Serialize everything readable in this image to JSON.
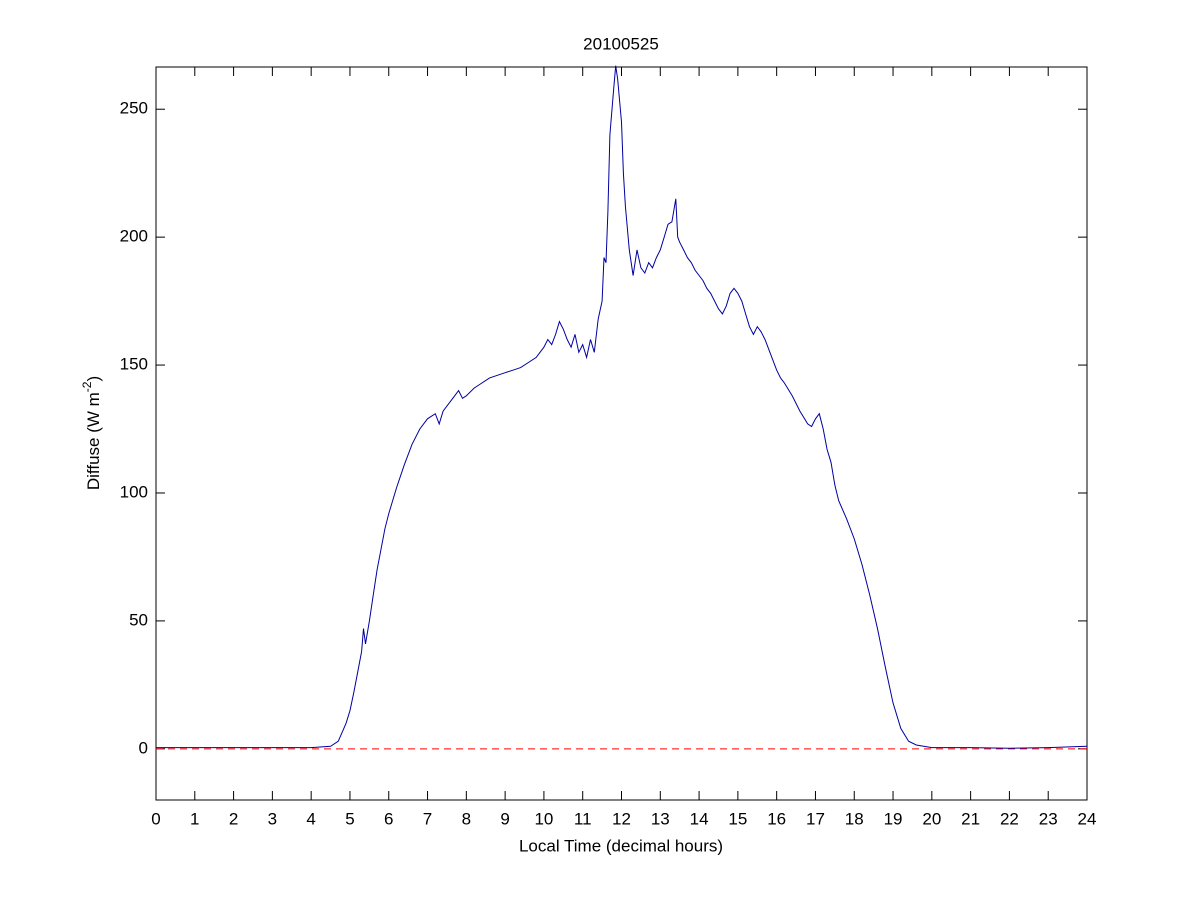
{
  "chart_data": {
    "type": "line",
    "title": "20100525",
    "xlabel": "Local Time (decimal hours)",
    "ylabel": [
      "Diffuse (W m",
      "-2",
      ")"
    ],
    "x": [
      0,
      4,
      4.5,
      4.7,
      4.9,
      5.0,
      5.1,
      5.2,
      5.3,
      5.35,
      5.4,
      5.5,
      5.6,
      5.7,
      5.8,
      5.9,
      6.0,
      6.2,
      6.4,
      6.6,
      6.8,
      7.0,
      7.2,
      7.3,
      7.4,
      7.6,
      7.8,
      7.9,
      8.0,
      8.2,
      8.4,
      8.6,
      8.8,
      9.0,
      9.2,
      9.4,
      9.6,
      9.8,
      10.0,
      10.1,
      10.2,
      10.3,
      10.4,
      10.5,
      10.6,
      10.7,
      10.8,
      10.9,
      11.0,
      11.1,
      11.2,
      11.3,
      11.4,
      11.5,
      11.55,
      11.6,
      11.65,
      11.7,
      11.8,
      11.85,
      11.9,
      12.0,
      12.05,
      12.1,
      12.2,
      12.3,
      12.4,
      12.5,
      12.6,
      12.7,
      12.8,
      12.9,
      13.0,
      13.1,
      13.2,
      13.3,
      13.4,
      13.45,
      13.5,
      13.6,
      13.7,
      13.8,
      13.9,
      14.0,
      14.1,
      14.2,
      14.3,
      14.4,
      14.5,
      14.6,
      14.7,
      14.8,
      14.9,
      15.0,
      15.1,
      15.2,
      15.3,
      15.4,
      15.5,
      15.6,
      15.7,
      15.8,
      15.9,
      16.0,
      16.1,
      16.2,
      16.4,
      16.6,
      16.8,
      16.9,
      17.0,
      17.1,
      17.2,
      17.3,
      17.4,
      17.5,
      17.6,
      17.8,
      18.0,
      18.2,
      18.4,
      18.6,
      18.8,
      19.0,
      19.2,
      19.4,
      19.6,
      20,
      21,
      22,
      23,
      24
    ],
    "series": [
      {
        "color": "#0000a0",
        "values": [
          0.5,
          0.5,
          1,
          3,
          10,
          15,
          22,
          30,
          38,
          47,
          41,
          50,
          60,
          70,
          78,
          86,
          92,
          102,
          111,
          119,
          125,
          129,
          131,
          127,
          132,
          136,
          140,
          137,
          138,
          141,
          143,
          145,
          146,
          147,
          148,
          149,
          151,
          153,
          157,
          160,
          158,
          162,
          167,
          164,
          160,
          157,
          162,
          155,
          158,
          153,
          160,
          155,
          168,
          175,
          192,
          190,
          210,
          240,
          258,
          267,
          262,
          245,
          225,
          212,
          195,
          185,
          195,
          188,
          186,
          190,
          188,
          192,
          195,
          200,
          205,
          206,
          215,
          200,
          198,
          195,
          192,
          190,
          187,
          185,
          183,
          180,
          178,
          175,
          172,
          170,
          173,
          178,
          180,
          178,
          175,
          170,
          165,
          162,
          165,
          163,
          160,
          156,
          152,
          148,
          145,
          143,
          138,
          132,
          127,
          126,
          129,
          131,
          125,
          117,
          112,
          103,
          97,
          90,
          82,
          72,
          60,
          47,
          32,
          18,
          8,
          3,
          1.5,
          0.5,
          0.5,
          0.2,
          0.5,
          1
        ]
      }
    ],
    "hline": {
      "value": 0,
      "color": "#ff0000",
      "style": "dashed"
    },
    "xlim": [
      0,
      24
    ],
    "xticks": [
      0,
      1,
      2,
      3,
      4,
      5,
      6,
      7,
      8,
      9,
      10,
      11,
      12,
      13,
      14,
      15,
      16,
      17,
      18,
      19,
      20,
      21,
      22,
      23,
      24
    ],
    "ylim": [
      -20,
      266.5
    ],
    "yticks": [
      0,
      50,
      100,
      150,
      200,
      250
    ]
  }
}
